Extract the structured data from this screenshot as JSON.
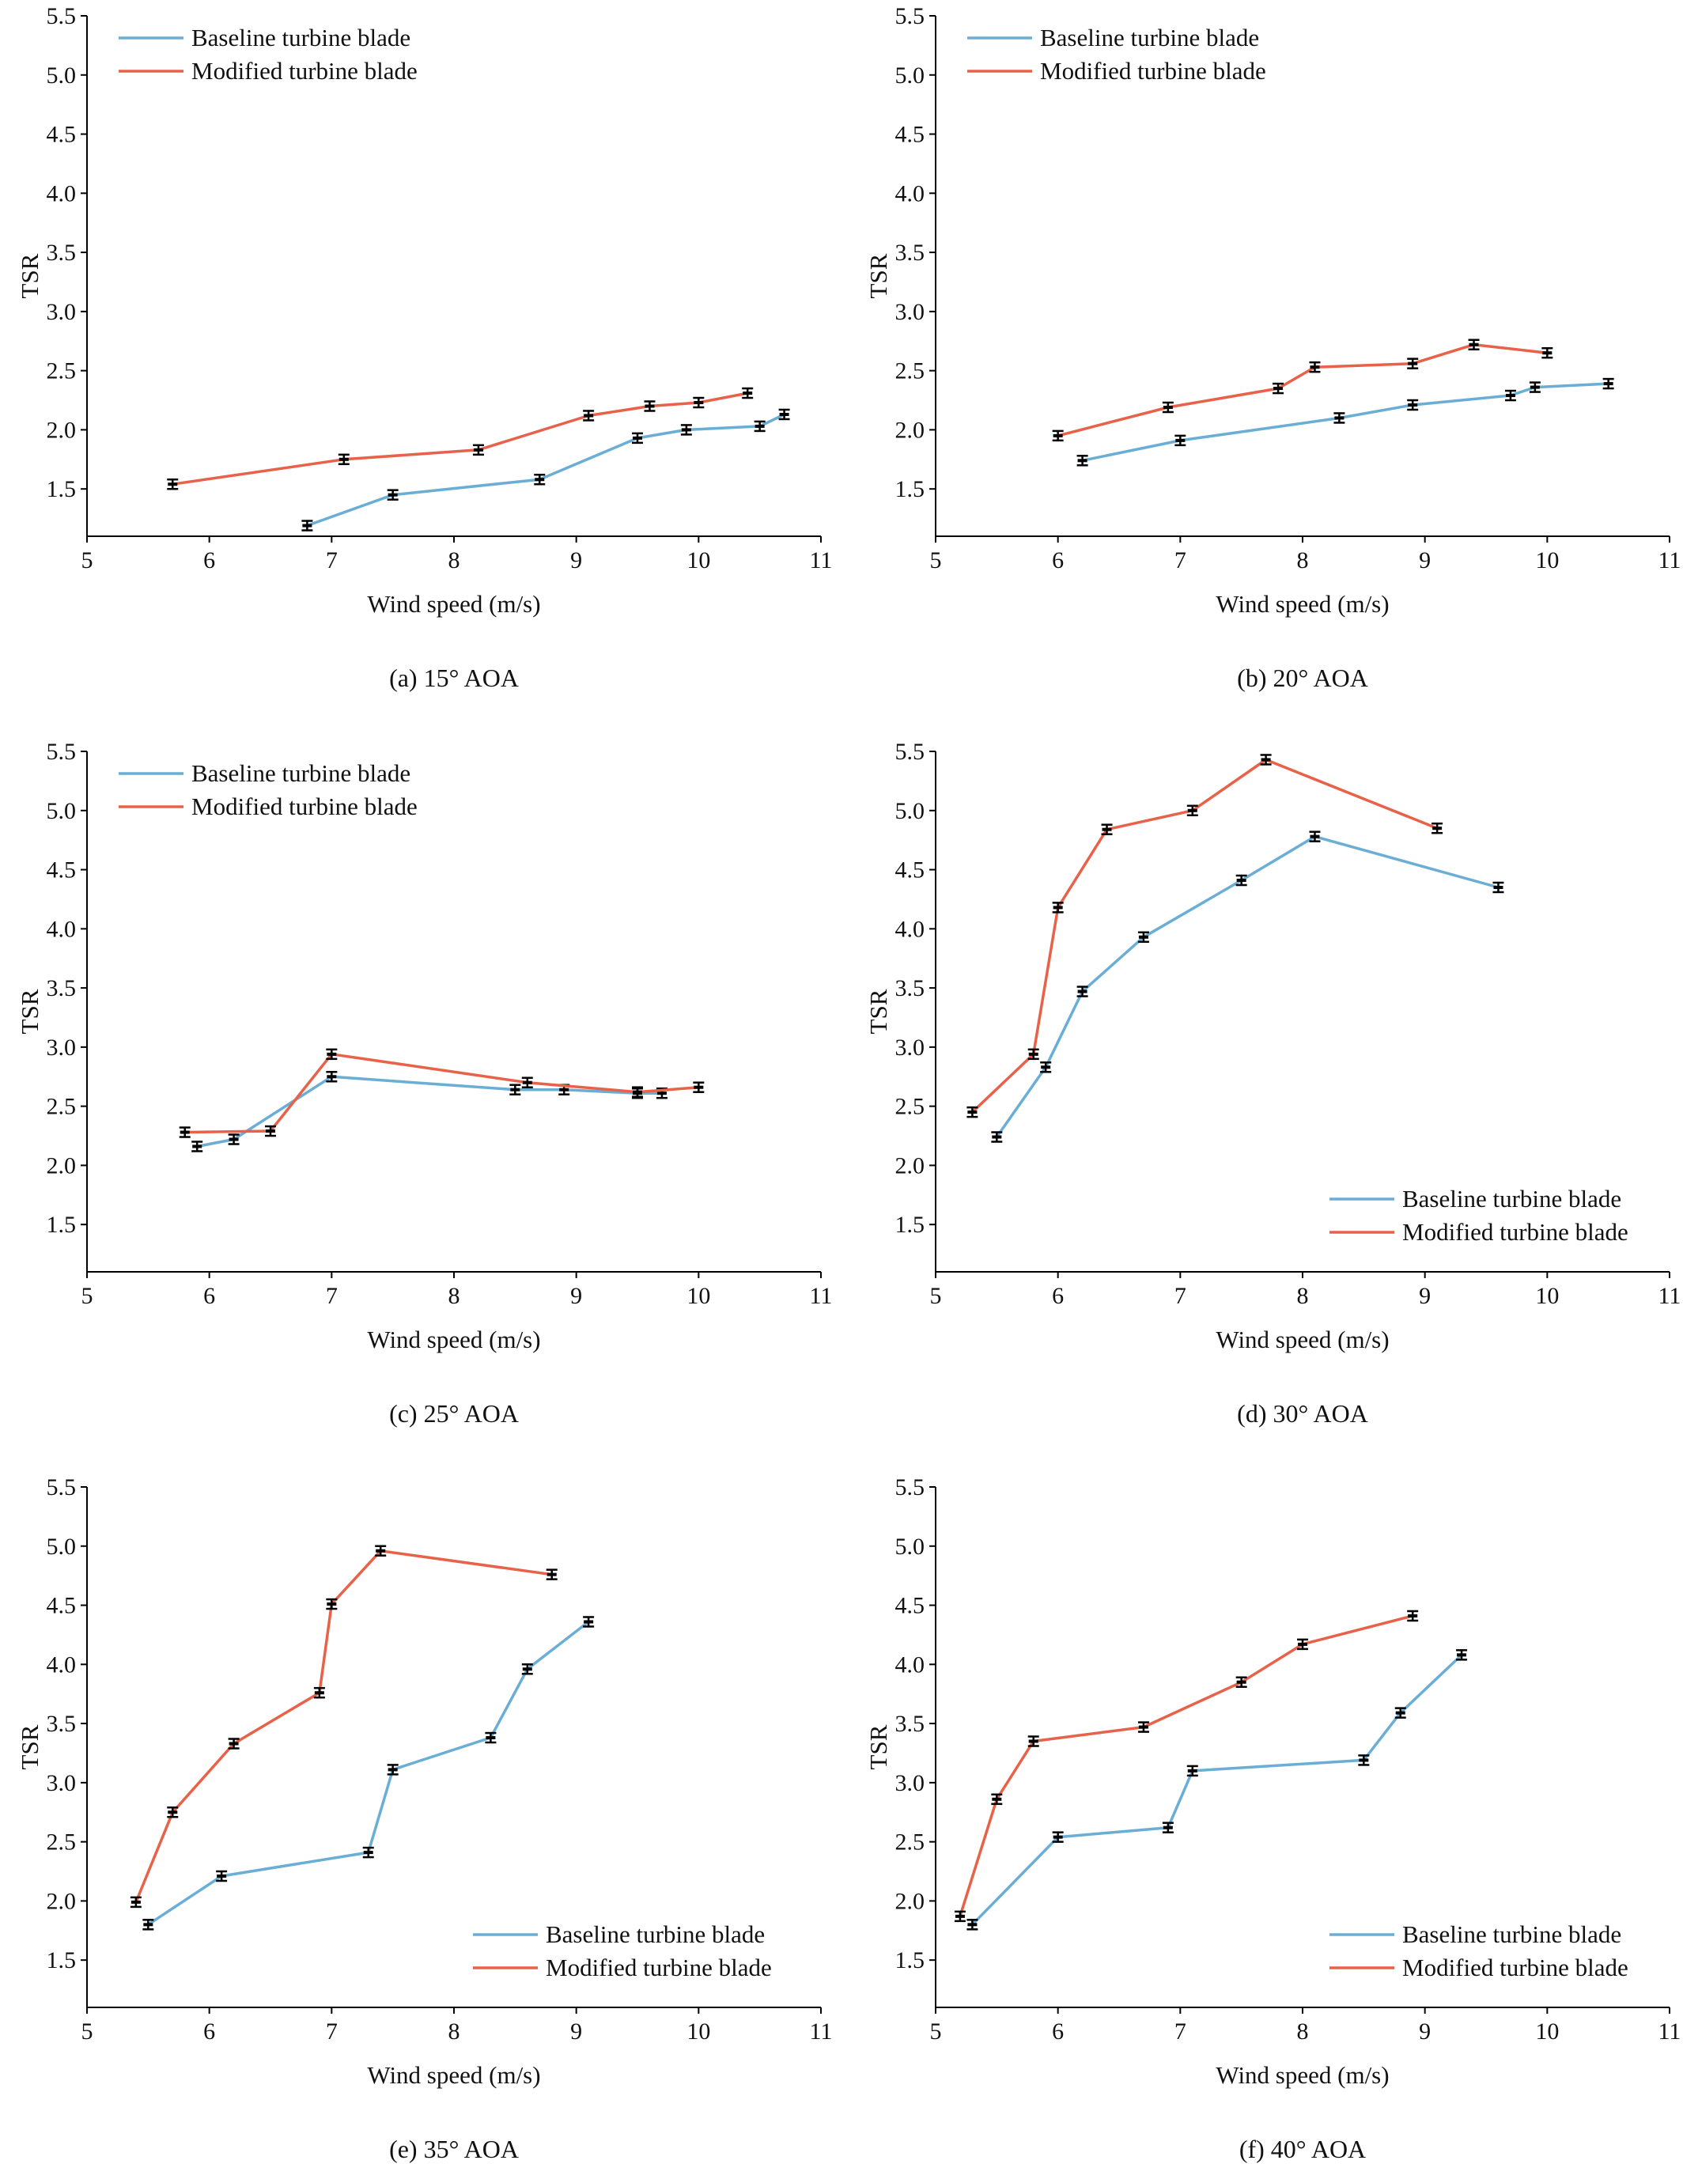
{
  "colors": {
    "baseline": "#6aaed6",
    "modified": "#e8624a"
  },
  "chart_data": [
    {
      "type": "line",
      "caption": "(a) 15° AOA",
      "xlabel": "Wind speed (m/s)",
      "ylabel": "TSR",
      "xlim": [
        5,
        11
      ],
      "ylim": [
        1.1,
        5.5
      ],
      "xticks": [
        "5",
        "6",
        "7",
        "8",
        "9",
        "10",
        "11"
      ],
      "yticks": [
        "1.5",
        "2.0",
        "2.5",
        "3.0",
        "3.5",
        "4.0",
        "4.5",
        "5.0",
        "5.5"
      ],
      "legend_position": "top-left",
      "series": [
        {
          "name": "Baseline turbine blade",
          "color_key": "baseline",
          "points": [
            [
              6.8,
              1.19
            ],
            [
              7.5,
              1.45
            ],
            [
              8.7,
              1.58
            ],
            [
              9.5,
              1.93
            ],
            [
              9.9,
              2.0
            ],
            [
              10.5,
              2.03
            ],
            [
              10.7,
              2.13
            ]
          ]
        },
        {
          "name": "Modified turbine blade",
          "color_key": "modified",
          "points": [
            [
              5.7,
              1.54
            ],
            [
              7.1,
              1.75
            ],
            [
              8.2,
              1.83
            ],
            [
              9.1,
              2.12
            ],
            [
              9.6,
              2.2
            ],
            [
              10.0,
              2.23
            ],
            [
              10.4,
              2.31
            ]
          ]
        }
      ]
    },
    {
      "type": "line",
      "caption": "(b) 20° AOA",
      "xlabel": "Wind speed (m/s)",
      "ylabel": "TSR",
      "xlim": [
        5,
        11
      ],
      "ylim": [
        1.1,
        5.5
      ],
      "xticks": [
        "5",
        "6",
        "7",
        "8",
        "9",
        "10",
        "11"
      ],
      "yticks": [
        "1.5",
        "2.0",
        "2.5",
        "3.0",
        "3.5",
        "4.0",
        "4.5",
        "5.0",
        "5.5"
      ],
      "legend_position": "top-left",
      "series": [
        {
          "name": "Baseline turbine blade",
          "color_key": "baseline",
          "points": [
            [
              6.2,
              1.74
            ],
            [
              7.0,
              1.91
            ],
            [
              8.3,
              2.1
            ],
            [
              8.9,
              2.21
            ],
            [
              9.7,
              2.29
            ],
            [
              9.9,
              2.36
            ],
            [
              10.5,
              2.39
            ]
          ]
        },
        {
          "name": "Modified turbine blade",
          "color_key": "modified",
          "points": [
            [
              6.0,
              1.95
            ],
            [
              6.9,
              2.19
            ],
            [
              7.8,
              2.35
            ],
            [
              8.1,
              2.53
            ],
            [
              8.9,
              2.56
            ],
            [
              9.4,
              2.72
            ],
            [
              10.0,
              2.65
            ]
          ]
        }
      ]
    },
    {
      "type": "line",
      "caption": "(c) 25° AOA",
      "xlabel": "Wind speed (m/s)",
      "ylabel": "TSR",
      "xlim": [
        5,
        11
      ],
      "ylim": [
        1.1,
        5.5
      ],
      "xticks": [
        "5",
        "6",
        "7",
        "8",
        "9",
        "10",
        "11"
      ],
      "yticks": [
        "1.5",
        "2.0",
        "2.5",
        "3.0",
        "3.5",
        "4.0",
        "4.5",
        "5.0",
        "5.5"
      ],
      "legend_position": "top-left",
      "series": [
        {
          "name": "Baseline turbine blade",
          "color_key": "baseline",
          "points": [
            [
              5.9,
              2.16
            ],
            [
              6.2,
              2.22
            ],
            [
              7.0,
              2.75
            ],
            [
              8.5,
              2.64
            ],
            [
              8.9,
              2.64
            ],
            [
              9.5,
              2.61
            ],
            [
              9.7,
              2.61
            ]
          ]
        },
        {
          "name": "Modified turbine blade",
          "color_key": "modified",
          "points": [
            [
              5.8,
              2.28
            ],
            [
              6.5,
              2.29
            ],
            [
              7.0,
              2.94
            ],
            [
              8.6,
              2.7
            ],
            [
              9.5,
              2.62
            ],
            [
              10.0,
              2.66
            ]
          ]
        }
      ]
    },
    {
      "type": "line",
      "caption": "(d) 30° AOA",
      "xlabel": "Wind speed (m/s)",
      "ylabel": "TSR",
      "xlim": [
        5,
        11
      ],
      "ylim": [
        1.1,
        5.5
      ],
      "xticks": [
        "5",
        "6",
        "7",
        "8",
        "9",
        "10",
        "11"
      ],
      "yticks": [
        "1.5",
        "2.0",
        "2.5",
        "3.0",
        "3.5",
        "4.0",
        "4.5",
        "5.0",
        "5.5"
      ],
      "legend_position": "bottom-right",
      "series": [
        {
          "name": "Baseline turbine blade",
          "color_key": "baseline",
          "points": [
            [
              5.5,
              2.24
            ],
            [
              5.9,
              2.83
            ],
            [
              6.2,
              3.47
            ],
            [
              6.7,
              3.93
            ],
            [
              7.5,
              4.41
            ],
            [
              8.1,
              4.78
            ],
            [
              9.6,
              4.35
            ]
          ]
        },
        {
          "name": "Modified turbine blade",
          "color_key": "modified",
          "points": [
            [
              5.3,
              2.45
            ],
            [
              5.8,
              2.94
            ],
            [
              6.0,
              4.18
            ],
            [
              6.4,
              4.84
            ],
            [
              7.1,
              5.0
            ],
            [
              7.7,
              5.43
            ],
            [
              9.1,
              4.85
            ]
          ]
        }
      ]
    },
    {
      "type": "line",
      "caption": "(e) 35° AOA",
      "xlabel": "Wind speed (m/s)",
      "ylabel": "TSR",
      "xlim": [
        5,
        11
      ],
      "ylim": [
        1.1,
        5.5
      ],
      "xticks": [
        "5",
        "6",
        "7",
        "8",
        "9",
        "10",
        "11"
      ],
      "yticks": [
        "1.5",
        "2.0",
        "2.5",
        "3.0",
        "3.5",
        "4.0",
        "4.5",
        "5.0",
        "5.5"
      ],
      "legend_position": "bottom-right",
      "series": [
        {
          "name": "Baseline turbine blade",
          "color_key": "baseline",
          "points": [
            [
              5.5,
              1.8
            ],
            [
              6.1,
              2.21
            ],
            [
              7.3,
              2.41
            ],
            [
              7.5,
              3.11
            ],
            [
              8.3,
              3.38
            ],
            [
              8.6,
              3.96
            ],
            [
              9.1,
              4.36
            ]
          ]
        },
        {
          "name": "Modified turbine blade",
          "color_key": "modified",
          "points": [
            [
              5.4,
              1.99
            ],
            [
              5.7,
              2.75
            ],
            [
              6.2,
              3.33
            ],
            [
              6.9,
              3.76
            ],
            [
              7.0,
              4.51
            ],
            [
              7.4,
              4.96
            ],
            [
              8.8,
              4.76
            ]
          ]
        }
      ]
    },
    {
      "type": "line",
      "caption": "(f) 40° AOA",
      "xlabel": "Wind speed (m/s)",
      "ylabel": "TSR",
      "xlim": [
        5,
        11
      ],
      "ylim": [
        1.1,
        5.5
      ],
      "xticks": [
        "5",
        "6",
        "7",
        "8",
        "9",
        "10",
        "11"
      ],
      "yticks": [
        "1.5",
        "2.0",
        "2.5",
        "3.0",
        "3.5",
        "4.0",
        "4.5",
        "5.0",
        "5.5"
      ],
      "legend_position": "bottom-right",
      "series": [
        {
          "name": "Baseline turbine blade",
          "color_key": "baseline",
          "points": [
            [
              5.3,
              1.8
            ],
            [
              6.0,
              2.54
            ],
            [
              6.9,
              2.62
            ],
            [
              7.1,
              3.1
            ],
            [
              8.5,
              3.19
            ],
            [
              8.8,
              3.59
            ],
            [
              9.3,
              4.08
            ]
          ]
        },
        {
          "name": "Modified turbine blade",
          "color_key": "modified",
          "points": [
            [
              5.2,
              1.87
            ],
            [
              5.5,
              2.86
            ],
            [
              5.8,
              3.35
            ],
            [
              6.7,
              3.47
            ],
            [
              7.5,
              3.85
            ],
            [
              8.0,
              4.17
            ],
            [
              8.9,
              4.41
            ]
          ]
        }
      ]
    }
  ]
}
